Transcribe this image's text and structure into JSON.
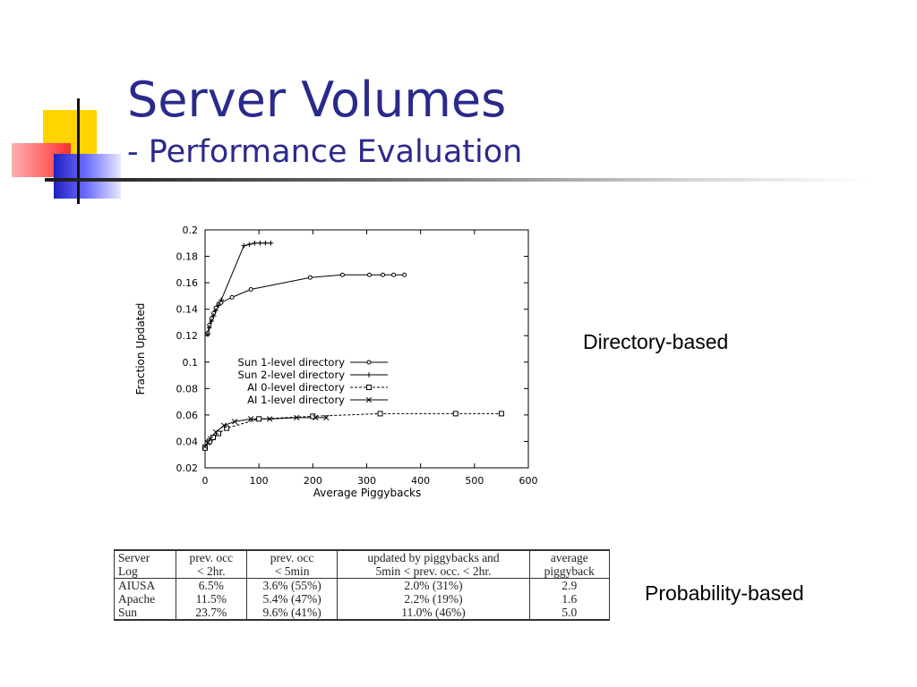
{
  "slide": {
    "title": "Server Volumes",
    "subtitle": "- Performance Evaluation",
    "label_directory": "Directory-based",
    "label_probability": "Probability-based"
  },
  "colors": {
    "title": "#2a2a8c",
    "deco_yellow": "#ffd400",
    "deco_red": "#ff4040",
    "deco_blue": "#3030d0"
  },
  "chart_data": {
    "type": "line",
    "title": "",
    "xlabel": "Average Piggybacks",
    "ylabel": "Fraction Updated",
    "xlim": [
      0,
      600
    ],
    "ylim": [
      0.02,
      0.2
    ],
    "xticks": [
      0,
      100,
      200,
      300,
      400,
      500,
      600
    ],
    "yticks": [
      0.02,
      0.04,
      0.06,
      0.08,
      0.1,
      0.12,
      0.14,
      0.16,
      0.18,
      0.2
    ],
    "grid": false,
    "legend_position": "center",
    "series": [
      {
        "name": "Sun 1-level directory",
        "marker": "circle",
        "dash": "solid",
        "x": [
          5,
          8,
          12,
          16,
          20,
          25,
          30,
          50,
          85,
          195,
          255,
          305,
          330,
          350,
          370
        ],
        "y": [
          0.122,
          0.128,
          0.133,
          0.137,
          0.141,
          0.144,
          0.145,
          0.149,
          0.155,
          0.164,
          0.166,
          0.166,
          0.166,
          0.166,
          0.166
        ]
      },
      {
        "name": "Sun 2-level directory",
        "marker": "plus",
        "dash": "solid",
        "x": [
          5,
          8,
          12,
          16,
          20,
          25,
          30,
          72,
          82,
          92,
          102,
          112,
          122
        ],
        "y": [
          0.121,
          0.126,
          0.131,
          0.135,
          0.139,
          0.143,
          0.147,
          0.188,
          0.189,
          0.19,
          0.19,
          0.19,
          0.19
        ]
      },
      {
        "name": "AI 0-level directory",
        "marker": "square",
        "dash": "dashed",
        "x": [
          0,
          8,
          15,
          25,
          40,
          100,
          200,
          325,
          465,
          550
        ],
        "y": [
          0.035,
          0.04,
          0.043,
          0.046,
          0.05,
          0.057,
          0.059,
          0.061,
          0.061,
          0.061
        ]
      },
      {
        "name": "AI 1-level directory",
        "marker": "x",
        "dash": "solid",
        "x": [
          0,
          5,
          10,
          20,
          35,
          55,
          85,
          120,
          170,
          205,
          225
        ],
        "y": [
          0.036,
          0.039,
          0.042,
          0.047,
          0.052,
          0.055,
          0.057,
          0.057,
          0.058,
          0.058,
          0.058
        ]
      }
    ]
  },
  "table": {
    "headers": [
      [
        "Server",
        "Log"
      ],
      [
        "prev. occ",
        "< 2hr."
      ],
      [
        "prev. occ",
        "< 5min"
      ],
      [
        "updated by piggybacks and",
        "5min < prev. occ. < 2hr."
      ],
      [
        "average",
        "piggyback"
      ]
    ],
    "rows": [
      [
        "AIUSA",
        "6.5%",
        "3.6% (55%)",
        "2.0% (31%)",
        "2.9"
      ],
      [
        "Apache",
        "11.5%",
        "5.4% (47%)",
        "2.2% (19%)",
        "1.6"
      ],
      [
        "Sun",
        "23.7%",
        "9.6% (41%)",
        "11.0% (46%)",
        "5.0"
      ]
    ]
  }
}
